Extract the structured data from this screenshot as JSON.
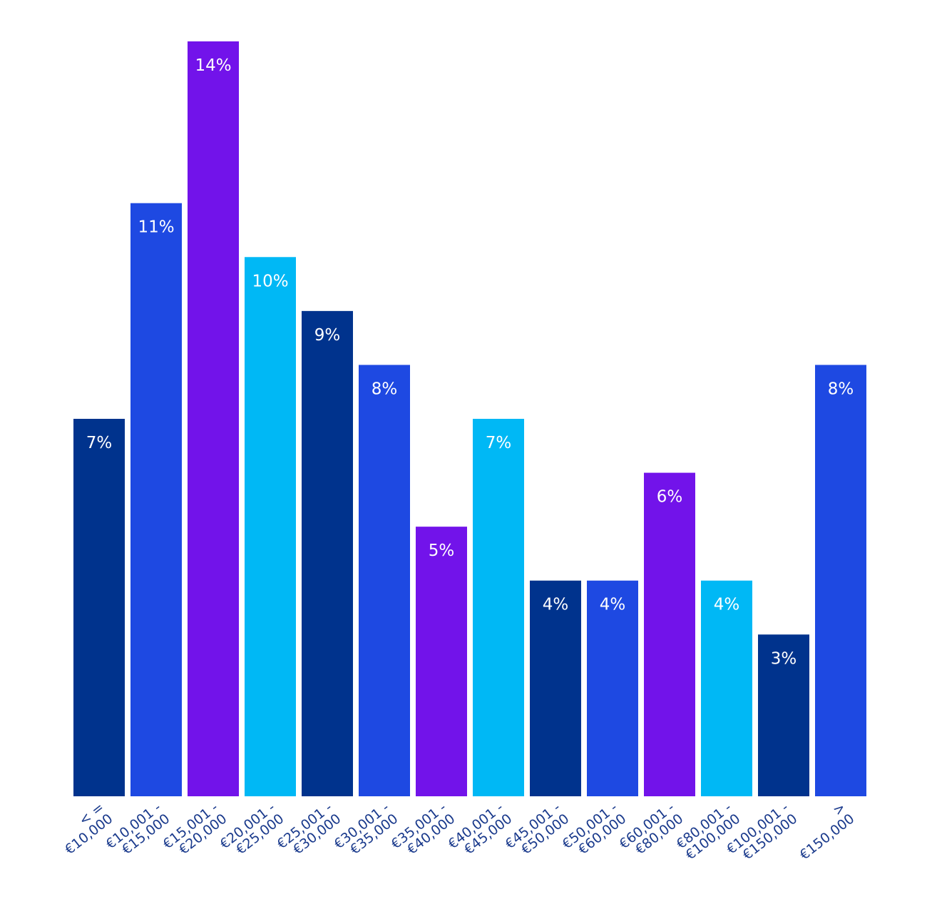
{
  "chart_data": {
    "type": "bar",
    "title": "",
    "xlabel": "",
    "ylabel": "",
    "ylim": [
      0,
      14
    ],
    "grid": false,
    "value_suffix": "%",
    "categories": [
      [
        "< =",
        "€10,000"
      ],
      [
        "€10,001 -",
        "€15,000"
      ],
      [
        "€15,001 -",
        "€20,000"
      ],
      [
        "€20,001 -",
        "€25,000"
      ],
      [
        "€25,001 -",
        "€30,000"
      ],
      [
        "€30,001 -",
        "€35,000"
      ],
      [
        "€35,001 -",
        "€40,000"
      ],
      [
        "€40,001 -",
        "€45,000"
      ],
      [
        "€45,001 -",
        "€50,000"
      ],
      [
        "€50,001 -",
        "€60,000"
      ],
      [
        "€60,001 -",
        "€80,000"
      ],
      [
        "€80,001 -",
        "€100,000"
      ],
      [
        "€100,001 -",
        "€150,000"
      ],
      [
        ">",
        "€150,000"
      ]
    ],
    "values": [
      7,
      11,
      14,
      10,
      9,
      8,
      5,
      7,
      4,
      4,
      6,
      4,
      3,
      8
    ],
    "colors": [
      "#00338d",
      "#1e49e2",
      "#7213ea",
      "#00b8f5",
      "#00338d",
      "#1e49e2",
      "#7213ea",
      "#00b8f5",
      "#00338d",
      "#1e49e2",
      "#7213ea",
      "#00b8f5",
      "#00338d",
      "#1e49e2"
    ]
  }
}
